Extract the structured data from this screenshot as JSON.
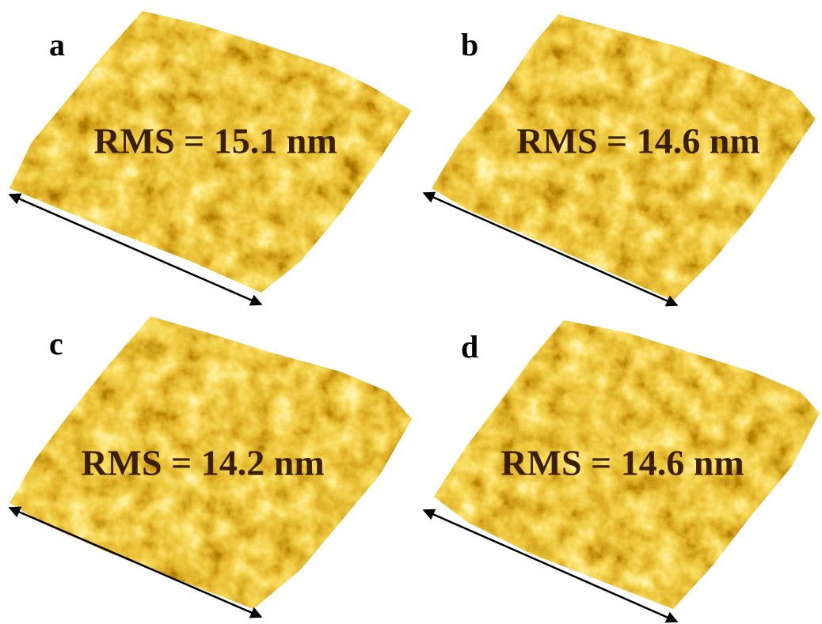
{
  "panels": [
    {
      "label": "a",
      "text": "RMS = 15.1 nm"
    },
    {
      "label": "b",
      "text": "RMS = 14.6 nm"
    },
    {
      "label": "c",
      "text": "RMS = 14.2 nm"
    },
    {
      "label": "d",
      "text": "RMS = 14.6 nm"
    }
  ]
}
